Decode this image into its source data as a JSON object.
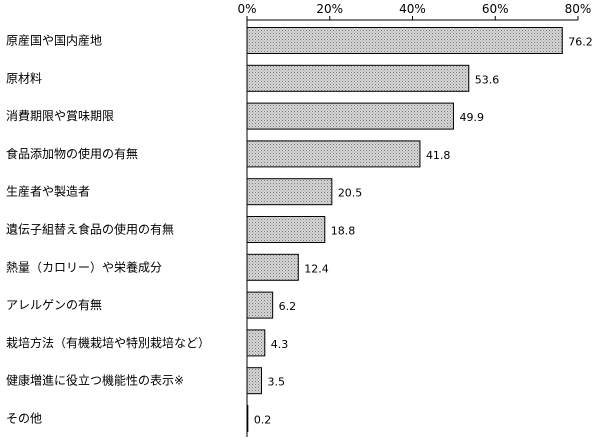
{
  "chart_data": {
    "type": "bar",
    "orientation": "horizontal",
    "title": "",
    "xlabel": "",
    "ylabel": "",
    "xlim": [
      0,
      80
    ],
    "ticks": [
      0,
      20,
      40,
      60,
      80
    ],
    "tick_labels": [
      "0%",
      "20%",
      "40%",
      "60%",
      "80%"
    ],
    "grid": false,
    "legend": "none",
    "bar_fill": "#c8c8c8",
    "bar_stroke": "#000000",
    "categories": [
      "原産国や国内産地",
      "原材料",
      "消費期限や賞味期限",
      "食品添加物の使用の有無",
      "生産者や製造者",
      "遺伝子組替え食品の使用の有無",
      "熱量（カロリー）や栄養成分",
      "アレルゲンの有無",
      "栽培方法（有機栽培や特別栽培など）",
      "健康増進に役立つ機能性の表示※",
      "その他"
    ],
    "values": [
      76.2,
      53.6,
      49.9,
      41.8,
      20.5,
      18.8,
      12.4,
      6.2,
      4.3,
      3.5,
      0.2
    ],
    "value_labels": [
      "76.2",
      "53.6",
      "49.9",
      "41.8",
      "20.5",
      "18.8",
      "12.4",
      "6.2",
      "4.3",
      "3.5",
      "0.2"
    ]
  }
}
